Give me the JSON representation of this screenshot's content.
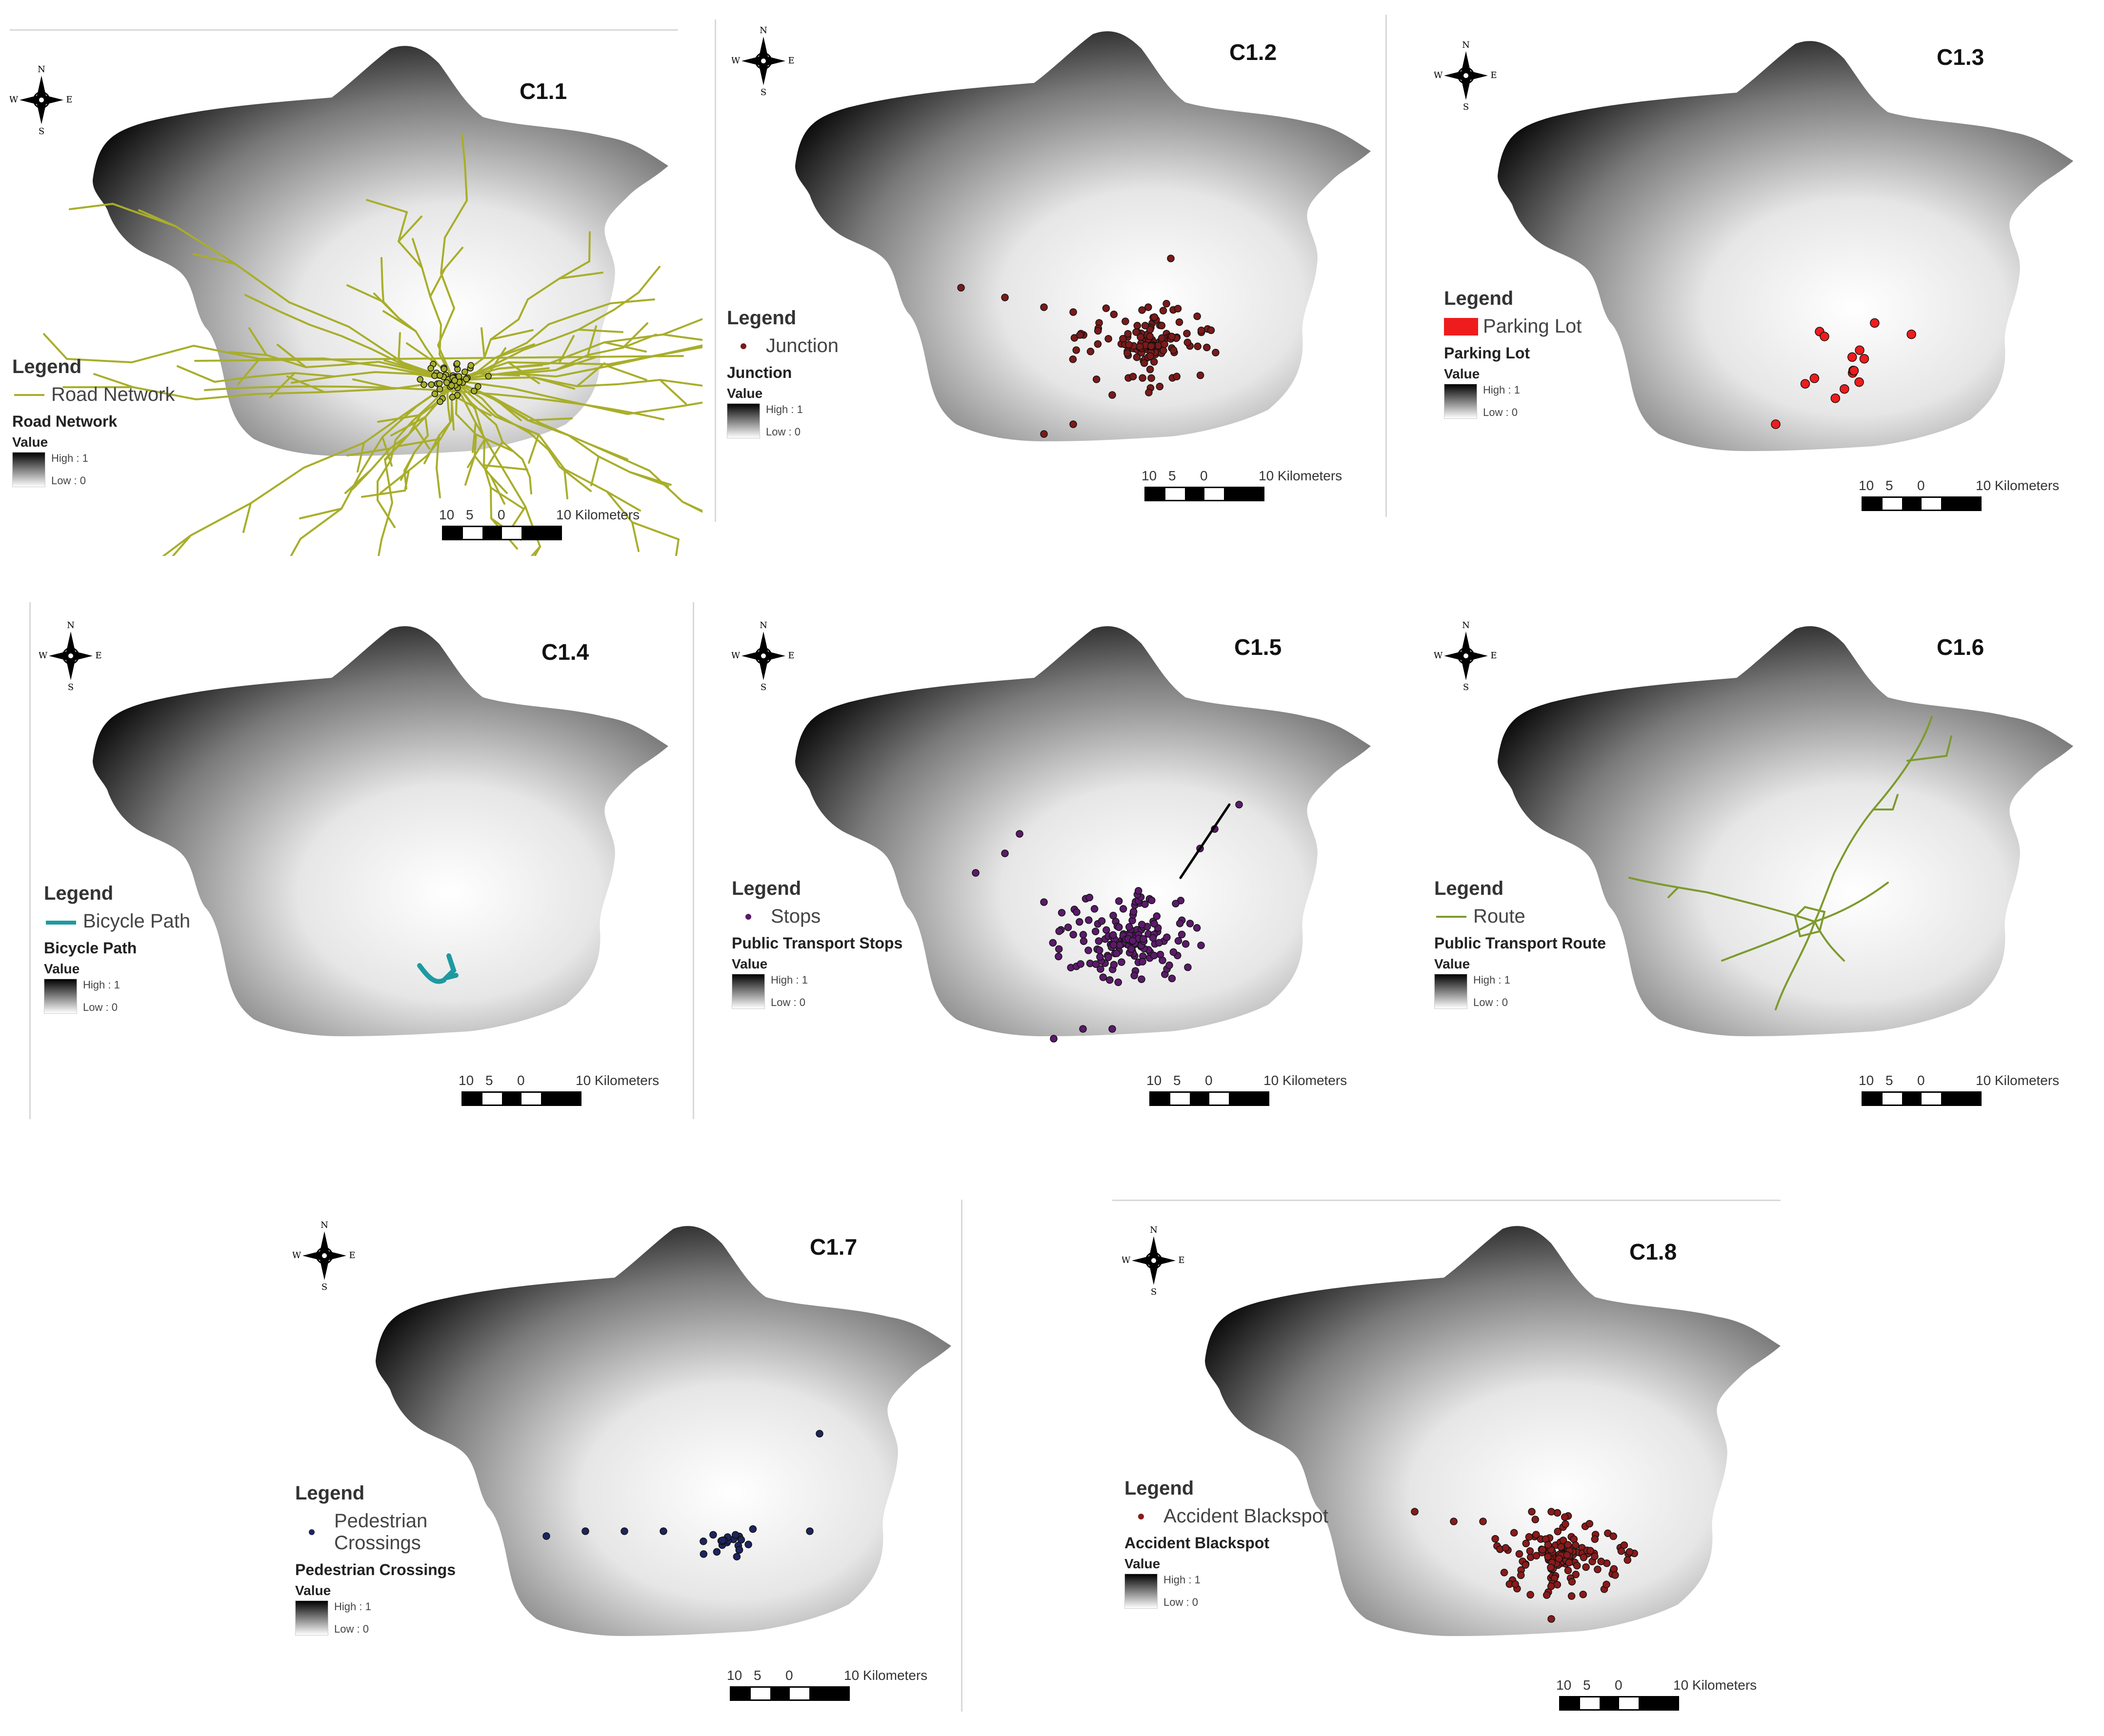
{
  "ramp_value_label": "Value",
  "ramp_high_label": "High : 1",
  "ramp_low_label": "Low : 0",
  "legend_heading": "Legend",
  "scale": {
    "tick_a": "10",
    "tick_b": "5",
    "tick_c": "0",
    "tick_d": "10 Kilometers"
  },
  "compass": {
    "n": "N",
    "s": "S",
    "e": "E",
    "w": "W"
  },
  "panels": [
    {
      "title": "C1.1",
      "symbol_label": "Road Network",
      "layer_label": "Road Network",
      "symbol_type": "line",
      "color": "#a8ae2a",
      "features": "road-network"
    },
    {
      "title": "C1.2",
      "symbol_label": "Junction",
      "layer_label": "Junction",
      "symbol_type": "point",
      "color": "#7a1a1a",
      "features": "junction-points"
    },
    {
      "title": "C1.3",
      "symbol_label": "Parking Lot",
      "layer_label": "Parking Lot",
      "symbol_type": "polygon",
      "color": "#ee1c1c",
      "features": "parking-lot-points"
    },
    {
      "title": "C1.4",
      "symbol_label": "Bicycle Path",
      "layer_label": "Bicycle Path",
      "symbol_type": "line",
      "color": "#1d9aa0",
      "features": "bicycle-path"
    },
    {
      "title": "C1.5",
      "symbol_label": "Stops",
      "layer_label": "Public Transport Stops",
      "symbol_type": "point",
      "color": "#5b1a6a",
      "features": "public-transport-stops"
    },
    {
      "title": "C1.6",
      "symbol_label": "Route",
      "layer_label": "Public Transport Route",
      "symbol_type": "line",
      "color": "#7d9a2e",
      "features": "public-transport-route"
    },
    {
      "title": "C1.7",
      "symbol_label": "Pedestrian Crossings",
      "layer_label": "Pedestrian Crossings",
      "symbol_type": "point",
      "color": "#1c2560",
      "features": "pedestrian-crossings"
    },
    {
      "title": "C1.8",
      "symbol_label": "Accident Blackspot",
      "layer_label": "Accident Blackspot",
      "symbol_type": "point",
      "color": "#8b1a1a",
      "features": "accident-blackspots"
    }
  ]
}
